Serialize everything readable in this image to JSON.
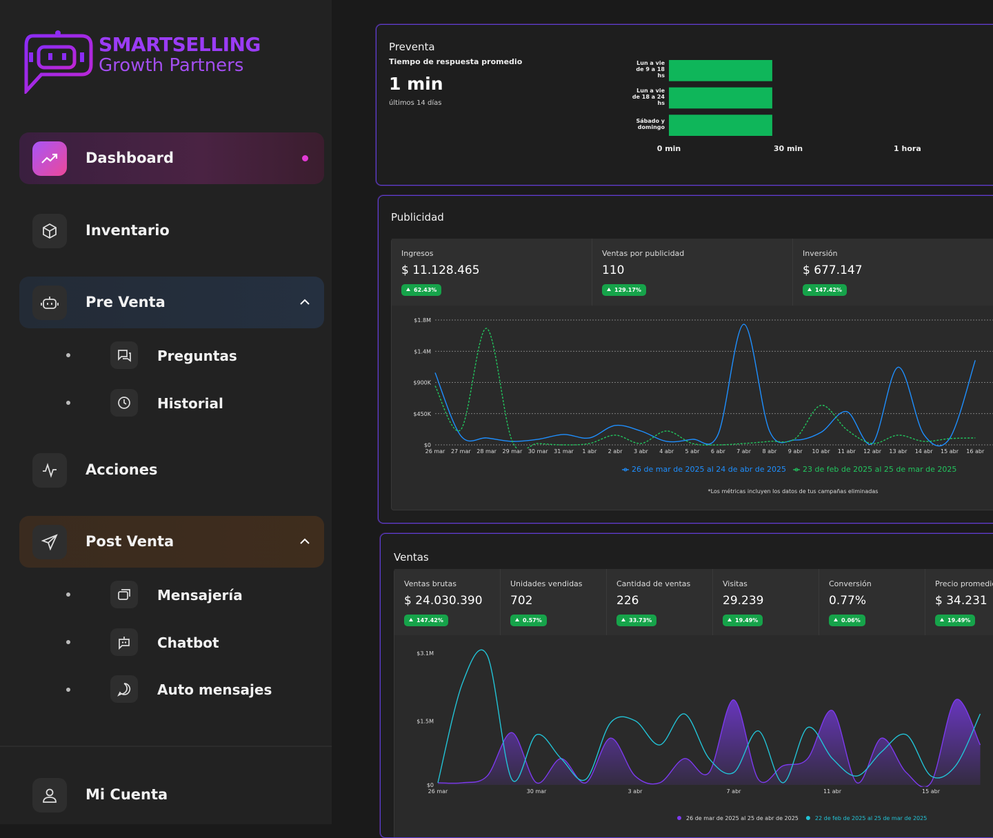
{
  "brand": {
    "name": "SMARTSELLING",
    "tagline": "Growth Partners"
  },
  "nav": [
    {
      "label": "Dashboard"
    },
    {
      "label": "Inventario"
    },
    {
      "label": "Pre Venta",
      "children": [
        "Preguntas",
        "Historial"
      ]
    },
    {
      "label": "Acciones"
    },
    {
      "label": "Post Venta",
      "children": [
        "Mensajería",
        "Chatbot",
        "Auto mensajes"
      ]
    }
  ],
  "account": "Mi Cuenta",
  "preventa": {
    "title": "Preventa",
    "subtitle": "Tiempo de respuesta promedio",
    "value": "1 min",
    "period": "últimos 14 días",
    "chart": {
      "type": "bar",
      "orientation": "horizontal",
      "categories": [
        "Lun a vie de 9 a 18 hs",
        "Lun a vie de 18 a 24 hs",
        "Sábado y domingo"
      ],
      "values": [
        26,
        26,
        26
      ],
      "color": "#0fb65a",
      "xlim": [
        0,
        81
      ],
      "xticks": [
        {
          "value": 0,
          "label": "0 min"
        },
        {
          "value": 30,
          "label": "30 min"
        },
        {
          "value": 60,
          "label": "1 hora"
        }
      ]
    }
  },
  "publicidad": {
    "title": "Publicidad",
    "metrics": [
      {
        "label": "Ingresos",
        "value": "$ 11.128.465",
        "change": "62.43%"
      },
      {
        "label": "Ventas por publicidad",
        "value": "110",
        "change": "129.17%"
      },
      {
        "label": "Inversión",
        "value": "$ 677.147",
        "change": "147.42%"
      }
    ],
    "chart": {
      "type": "line",
      "categories": [
        "26 mar",
        "27 mar",
        "28 mar",
        "29 mar",
        "30 mar",
        "31 mar",
        "1 abr",
        "2 abr",
        "3 abr",
        "4 abr",
        "5 abr",
        "6 abr",
        "7 abr",
        "8 abr",
        "9 abr",
        "10 abr",
        "11 abr",
        "12 abr",
        "13 abr",
        "14 abr",
        "15 abr",
        "16 abr"
      ],
      "series": [
        {
          "name": "26 de mar de 2025 al 24 de abr de 2025",
          "color": "#1e8fff",
          "dashed": false,
          "values": [
            1040000,
            130000,
            100000,
            50000,
            80000,
            150000,
            100000,
            280000,
            200000,
            50000,
            80000,
            150000,
            1740000,
            200000,
            70000,
            180000,
            480000,
            20000,
            1120000,
            150000,
            90000,
            1220000
          ]
        },
        {
          "name": "23 de feb de 2025 al 25 de mar de 2025",
          "color": "#22c55e",
          "dashed": true,
          "values": [
            850000,
            220000,
            1680000,
            50000,
            20000,
            0,
            20000,
            140000,
            20000,
            200000,
            20000,
            0,
            20000,
            50000,
            90000,
            570000,
            220000,
            20000,
            140000,
            50000,
            90000,
            100000
          ]
        }
      ],
      "ylim": [
        0,
        1800000
      ],
      "yticks": [
        {
          "value": 0,
          "label": "$0"
        },
        {
          "value": 450000,
          "label": "$450K"
        },
        {
          "value": 900000,
          "label": "$900K"
        },
        {
          "value": 1350000,
          "label": "$1.4M"
        },
        {
          "value": 1800000,
          "label": "$1.8M"
        }
      ],
      "grid": true
    },
    "note": "*Los métricas incluyen los datos de tus campañas eliminadas"
  },
  "ventas": {
    "title": "Ventas",
    "metrics": [
      {
        "label": "Ventas brutas",
        "value": "$ 24.030.390",
        "change": "147.42%"
      },
      {
        "label": "Unidades vendidas",
        "value": "702",
        "change": "0.57%"
      },
      {
        "label": "Cantidad de ventas",
        "value": "226",
        "change": "33.73%"
      },
      {
        "label": "Visitas",
        "value": "29.239",
        "change": "19.49%"
      },
      {
        "label": "Conversión",
        "value": "0.77%",
        "change": "0.06%"
      },
      {
        "label": "Precio promedio",
        "value": "$ 34.231",
        "change": "19.49%"
      }
    ],
    "chart": {
      "type": "area",
      "categories": [
        "26 mar",
        null,
        null,
        null,
        "30 mar",
        null,
        null,
        null,
        "3 abr",
        null,
        null,
        null,
        "7 abr",
        null,
        null,
        null,
        "11 abr",
        null,
        null,
        null,
        "15 abr",
        null,
        null
      ],
      "series": [
        {
          "name": "26 de mar de 2025 al 25 de abr de 2025",
          "color": "#7c3aed",
          "fill": true,
          "values": [
            50000,
            50000,
            210000,
            1230000,
            50000,
            620000,
            50000,
            1100000,
            210000,
            50000,
            620000,
            290000,
            2000000,
            130000,
            450000,
            620000,
            1750000,
            50000,
            1100000,
            290000,
            50000,
            2000000,
            940000
          ]
        },
        {
          "name": "22 de feb de 2025 al 25 de mar de 2025",
          "color": "#22c3d6",
          "fill": false,
          "values": [
            50000,
            2400000,
            3050000,
            130000,
            1180000,
            620000,
            130000,
            1460000,
            1510000,
            940000,
            1670000,
            620000,
            290000,
            1270000,
            50000,
            1350000,
            620000,
            210000,
            780000,
            1180000,
            210000,
            450000,
            1670000
          ]
        }
      ],
      "ylim": [
        0,
        3100000
      ],
      "yticks": [
        {
          "value": 0,
          "label": "$0"
        },
        {
          "value": 1500000,
          "label": "$1.5M"
        },
        {
          "value": 3100000,
          "label": "$3.1M"
        }
      ],
      "grid": false
    }
  }
}
